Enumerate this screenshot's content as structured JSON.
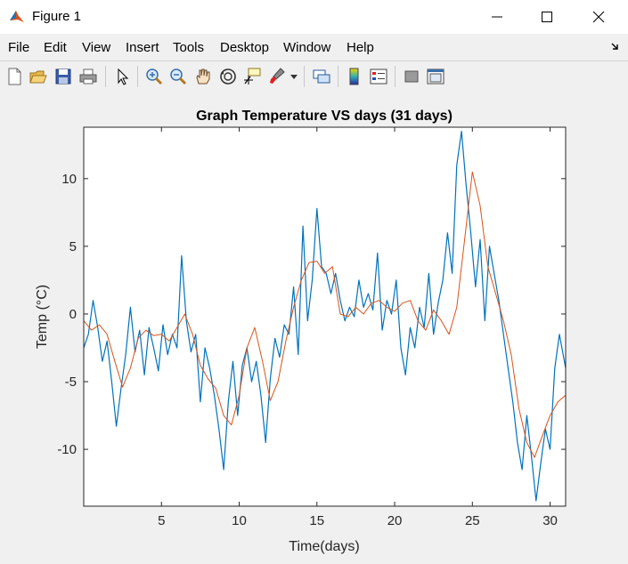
{
  "window": {
    "title": "Figure 1"
  },
  "menu": [
    "File",
    "Edit",
    "View",
    "Insert",
    "Tools",
    "Desktop",
    "Window",
    "Help"
  ],
  "toolbar_icons": [
    "new-figure-icon",
    "open-file-icon",
    "save-icon",
    "print-icon",
    "edit-plot-arrow-icon",
    "zoom-in-icon",
    "zoom-out-icon",
    "pan-hand-icon",
    "rotate-3d-icon",
    "data-cursor-icon",
    "brush-icon",
    "brush-dropdown-icon",
    "link-plot-icon",
    "insert-colorbar-icon",
    "insert-legend-icon",
    "hide-plot-tools-icon",
    "show-plot-tools-icon"
  ],
  "chart_data": {
    "type": "line",
    "title": "Graph Temperature VS days (31 days)",
    "xlabel": "Time(days)",
    "ylabel": "Temp (°C)",
    "xlim": [
      0,
      31
    ],
    "ylim": [
      -14.2,
      13.8
    ],
    "xticks": [
      5,
      10,
      15,
      20,
      25,
      30
    ],
    "yticks": [
      -10,
      -5,
      0,
      5,
      10
    ],
    "series": [
      {
        "color": "#0072bd",
        "x": [
          0,
          0.3,
          0.6,
          0.9,
          1.2,
          1.5,
          1.8,
          2.1,
          2.4,
          2.7,
          3.0,
          3.3,
          3.6,
          3.9,
          4.2,
          4.5,
          4.8,
          5.1,
          5.4,
          5.7,
          6.0,
          6.3,
          6.6,
          6.9,
          7.2,
          7.5,
          7.8,
          8.1,
          8.4,
          8.7,
          9.0,
          9.3,
          9.6,
          9.9,
          10.2,
          10.5,
          10.8,
          11.1,
          11.4,
          11.7,
          12.0,
          12.3,
          12.6,
          12.9,
          13.2,
          13.5,
          13.8,
          14.1,
          14.4,
          14.7,
          15.0,
          15.3,
          15.6,
          15.9,
          16.2,
          16.5,
          16.8,
          17.1,
          17.4,
          17.7,
          18.0,
          18.3,
          18.6,
          18.9,
          19.2,
          19.5,
          19.8,
          20.1,
          20.4,
          20.7,
          21.0,
          21.3,
          21.6,
          21.9,
          22.2,
          22.5,
          22.8,
          23.1,
          23.4,
          23.7,
          24.0,
          24.3,
          24.6,
          24.9,
          25.2,
          25.5,
          25.8,
          26.1,
          26.4,
          26.7,
          27.0,
          27.3,
          27.6,
          27.9,
          28.2,
          28.5,
          28.8,
          29.1,
          29.4,
          29.7,
          30.0,
          30.3,
          30.6,
          31.0
        ],
        "y": [
          -2.5,
          -1.5,
          1.0,
          -1.0,
          -3.5,
          -2.0,
          -5.0,
          -8.3,
          -5.5,
          -3.0,
          0.5,
          -2.8,
          -1.2,
          -4.5,
          -1.0,
          -2.5,
          -4.2,
          -0.8,
          -3.0,
          -1.5,
          -2.5,
          4.3,
          -0.5,
          -2.8,
          -1.5,
          -6.5,
          -2.5,
          -4.0,
          -6.0,
          -8.5,
          -11.5,
          -6.5,
          -3.5,
          -7.5,
          -3.8,
          -2.5,
          -5.0,
          -3.5,
          -6.0,
          -9.5,
          -4.8,
          -1.8,
          -3.2,
          -0.8,
          -1.5,
          2.0,
          -3.0,
          6.5,
          -0.5,
          2.5,
          7.8,
          3.5,
          3.0,
          1.5,
          3.0,
          1.0,
          -0.5,
          0.5,
          -0.2,
          2.5,
          0.5,
          1.5,
          0.3,
          4.5,
          -1.2,
          1.0,
          0.0,
          2.5,
          -2.5,
          -4.5,
          -1.0,
          -2.5,
          0.5,
          -1.0,
          3.0,
          -1.5,
          0.8,
          2.5,
          6.0,
          3.0,
          11.0,
          13.5,
          9.5,
          6.0,
          2.0,
          5.5,
          -0.5,
          5.0,
          3.0,
          1.0,
          -1.5,
          -4.0,
          -6.5,
          -9.5,
          -11.5,
          -7.5,
          -10.5,
          -13.8,
          -11.0,
          -8.5,
          -10.0,
          -4.0,
          -1.5,
          -4.0
        ]
      },
      {
        "color": "#d95319",
        "x": [
          0,
          0.5,
          1.0,
          1.5,
          2.0,
          2.5,
          3.0,
          3.5,
          4.0,
          4.5,
          5.0,
          5.5,
          6.0,
          6.5,
          7.0,
          7.5,
          8.0,
          8.5,
          9.0,
          9.5,
          10.0,
          10.5,
          11.0,
          11.5,
          12.0,
          12.5,
          13.0,
          13.5,
          14.0,
          14.5,
          15.0,
          15.5,
          16.0,
          16.5,
          17.0,
          17.5,
          18.0,
          18.5,
          19.0,
          19.5,
          20.0,
          20.5,
          21.0,
          21.5,
          22.0,
          22.5,
          23.0,
          23.5,
          24.0,
          24.5,
          25.0,
          25.5,
          26.0,
          26.5,
          27.0,
          27.5,
          28.0,
          28.5,
          29.0,
          29.5,
          30.0,
          30.5,
          31.0
        ],
        "y": [
          -0.5,
          -1.2,
          -0.8,
          -1.5,
          -3.5,
          -5.4,
          -4.0,
          -1.8,
          -1.2,
          -1.6,
          -1.5,
          -2.0,
          -1.0,
          0.0,
          -1.5,
          -3.8,
          -4.8,
          -5.5,
          -7.5,
          -8.2,
          -6.0,
          -2.5,
          -1.0,
          -3.5,
          -6.4,
          -5.0,
          -2.0,
          0.5,
          2.5,
          3.8,
          3.9,
          3.0,
          3.5,
          0.0,
          -0.2,
          0.5,
          0.0,
          0.8,
          1.0,
          0.5,
          0.2,
          0.8,
          1.0,
          -0.5,
          -1.2,
          0.3,
          -0.5,
          -1.5,
          0.5,
          5.5,
          10.5,
          8.0,
          3.5,
          1.5,
          -0.5,
          -3.0,
          -7.0,
          -9.5,
          -10.6,
          -9.0,
          -7.5,
          -6.5,
          -6.0
        ]
      }
    ],
    "grid": false,
    "legend": "none"
  }
}
